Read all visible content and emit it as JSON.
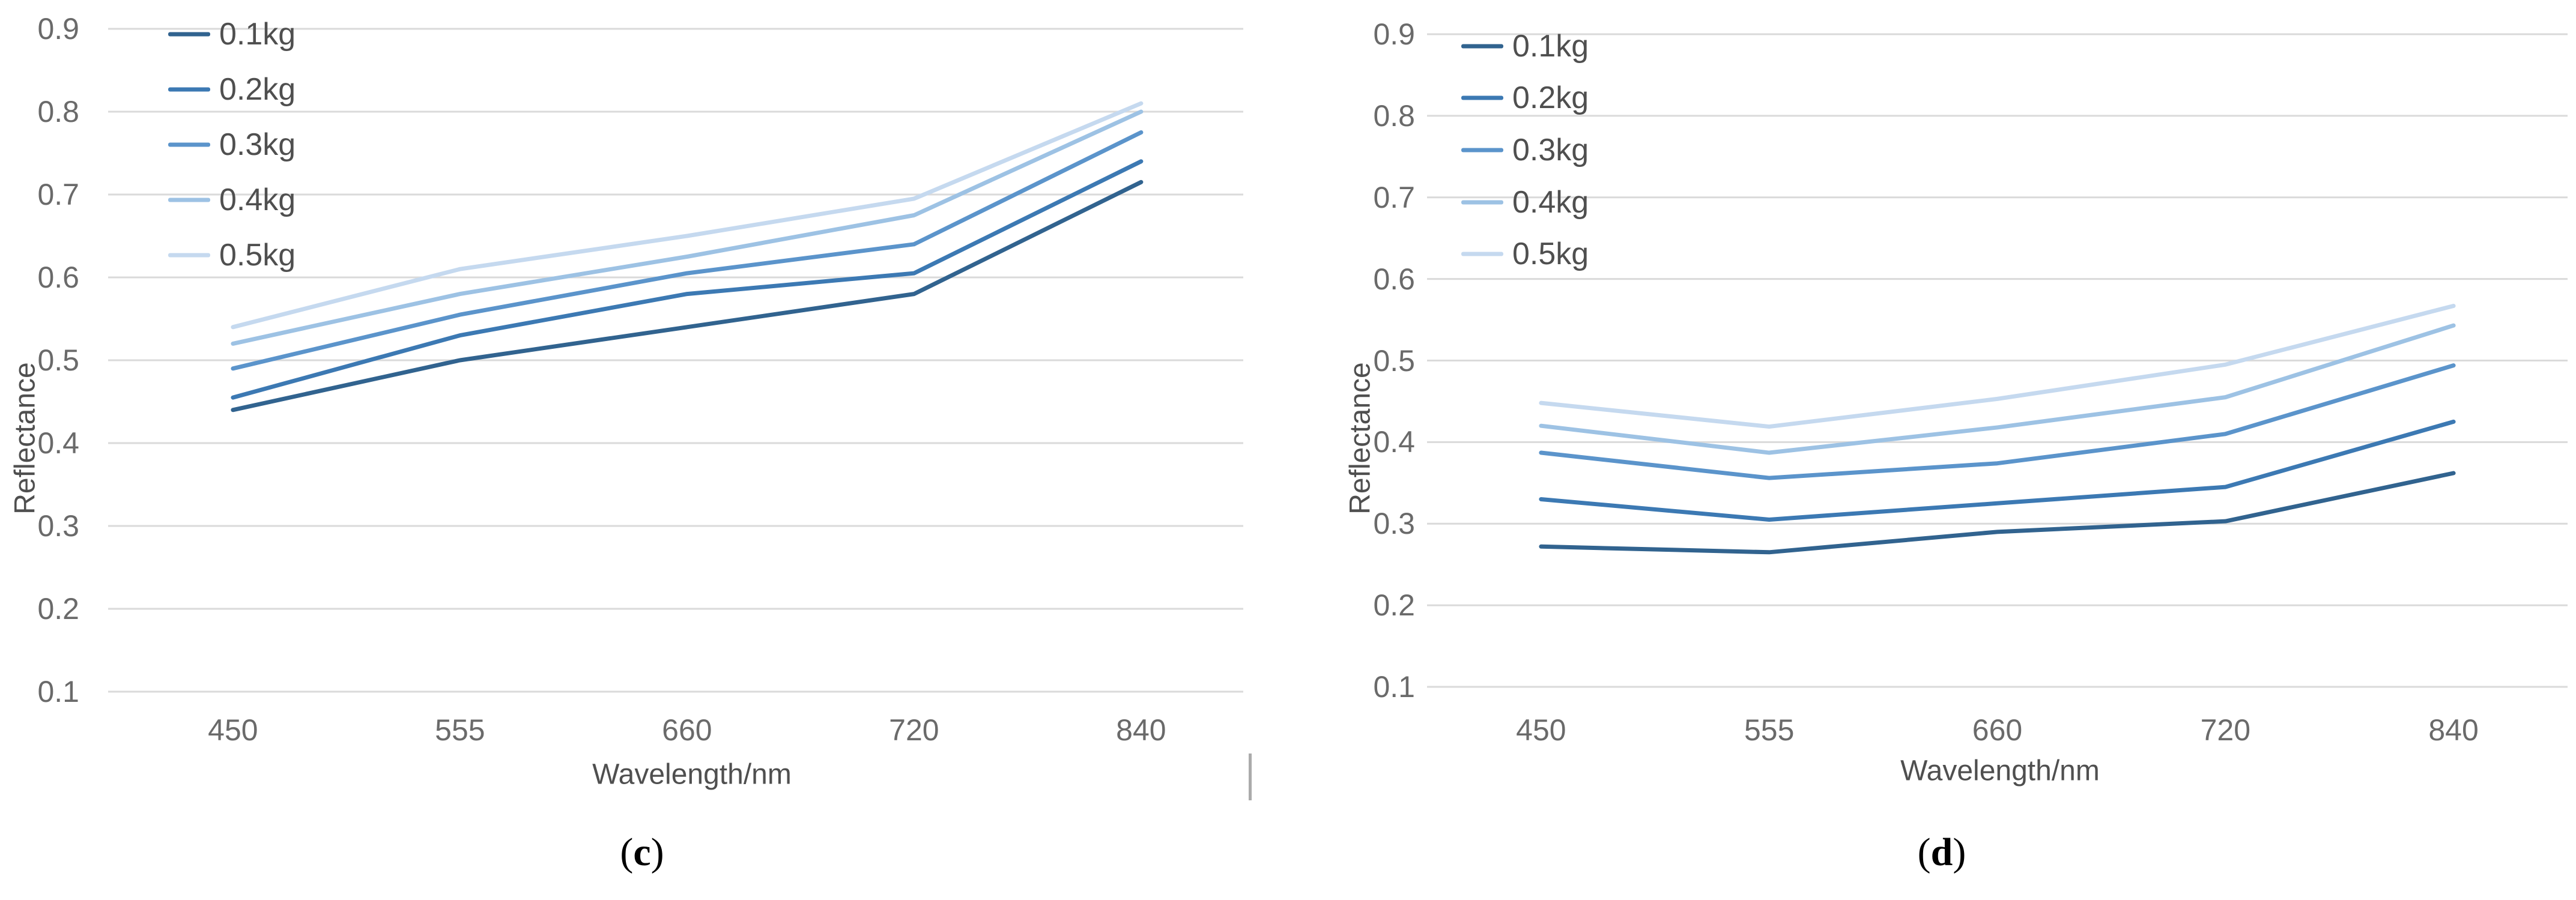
{
  "figure": {
    "background": "#ffffff",
    "gridline_color": "#dadada",
    "tick_text_color": "#6a6a6a",
    "label_text_color": "#4f4f4f",
    "divider_color": "#ababab",
    "paren_open": "(",
    "paren_close": ")"
  },
  "chart_data": [
    {
      "type": "line",
      "caption_letter": "c",
      "xlabel": "Wavelength/nm",
      "ylabel": "Reflectance",
      "categories": [
        "450",
        "555",
        "660",
        "720",
        "840"
      ],
      "ylim": [
        0.1,
        0.9
      ],
      "yticks": [
        "0.9",
        "0.8",
        "0.7",
        "0.6",
        "0.5",
        "0.4",
        "0.3",
        "0.2",
        "0.1"
      ],
      "grid": "horizontal-only",
      "legend_position": "inside-top-left",
      "series": [
        {
          "name": "0.1kg",
          "color": "#31638f",
          "values": [
            0.44,
            0.5,
            0.54,
            0.58,
            0.715
          ]
        },
        {
          "name": "0.2kg",
          "color": "#3c79b3",
          "values": [
            0.455,
            0.53,
            0.58,
            0.605,
            0.74
          ]
        },
        {
          "name": "0.3kg",
          "color": "#5b94cb",
          "values": [
            0.49,
            0.555,
            0.605,
            0.64,
            0.775
          ]
        },
        {
          "name": "0.4kg",
          "color": "#9dc2e4",
          "values": [
            0.52,
            0.58,
            0.625,
            0.675,
            0.8
          ]
        },
        {
          "name": "0.5kg",
          "color": "#c5d9ef",
          "values": [
            0.54,
            0.61,
            0.65,
            0.695,
            0.81
          ]
        }
      ]
    },
    {
      "type": "line",
      "caption_letter": "d",
      "xlabel": "Wavelength/nm",
      "ylabel": "Reflectance",
      "categories": [
        "450",
        "555",
        "660",
        "720",
        "840"
      ],
      "ylim": [
        0.1,
        0.9
      ],
      "yticks": [
        "0.9",
        "0.8",
        "0.7",
        "0.6",
        "0.5",
        "0.4",
        "0.3",
        "0.2",
        "0.1"
      ],
      "grid": "horizontal-only",
      "legend_position": "inside-top-left",
      "series": [
        {
          "name": "0.1kg",
          "color": "#31638f",
          "values": [
            0.272,
            0.265,
            0.29,
            0.303,
            0.362
          ]
        },
        {
          "name": "0.2kg",
          "color": "#3c79b3",
          "values": [
            0.33,
            0.305,
            0.325,
            0.345,
            0.425
          ]
        },
        {
          "name": "0.3kg",
          "color": "#5b94cb",
          "values": [
            0.387,
            0.356,
            0.374,
            0.41,
            0.494
          ]
        },
        {
          "name": "0.4kg",
          "color": "#9dc2e4",
          "values": [
            0.42,
            0.387,
            0.418,
            0.455,
            0.543
          ]
        },
        {
          "name": "0.5kg",
          "color": "#c5d9ef",
          "values": [
            0.448,
            0.419,
            0.453,
            0.495,
            0.567
          ]
        }
      ]
    }
  ]
}
